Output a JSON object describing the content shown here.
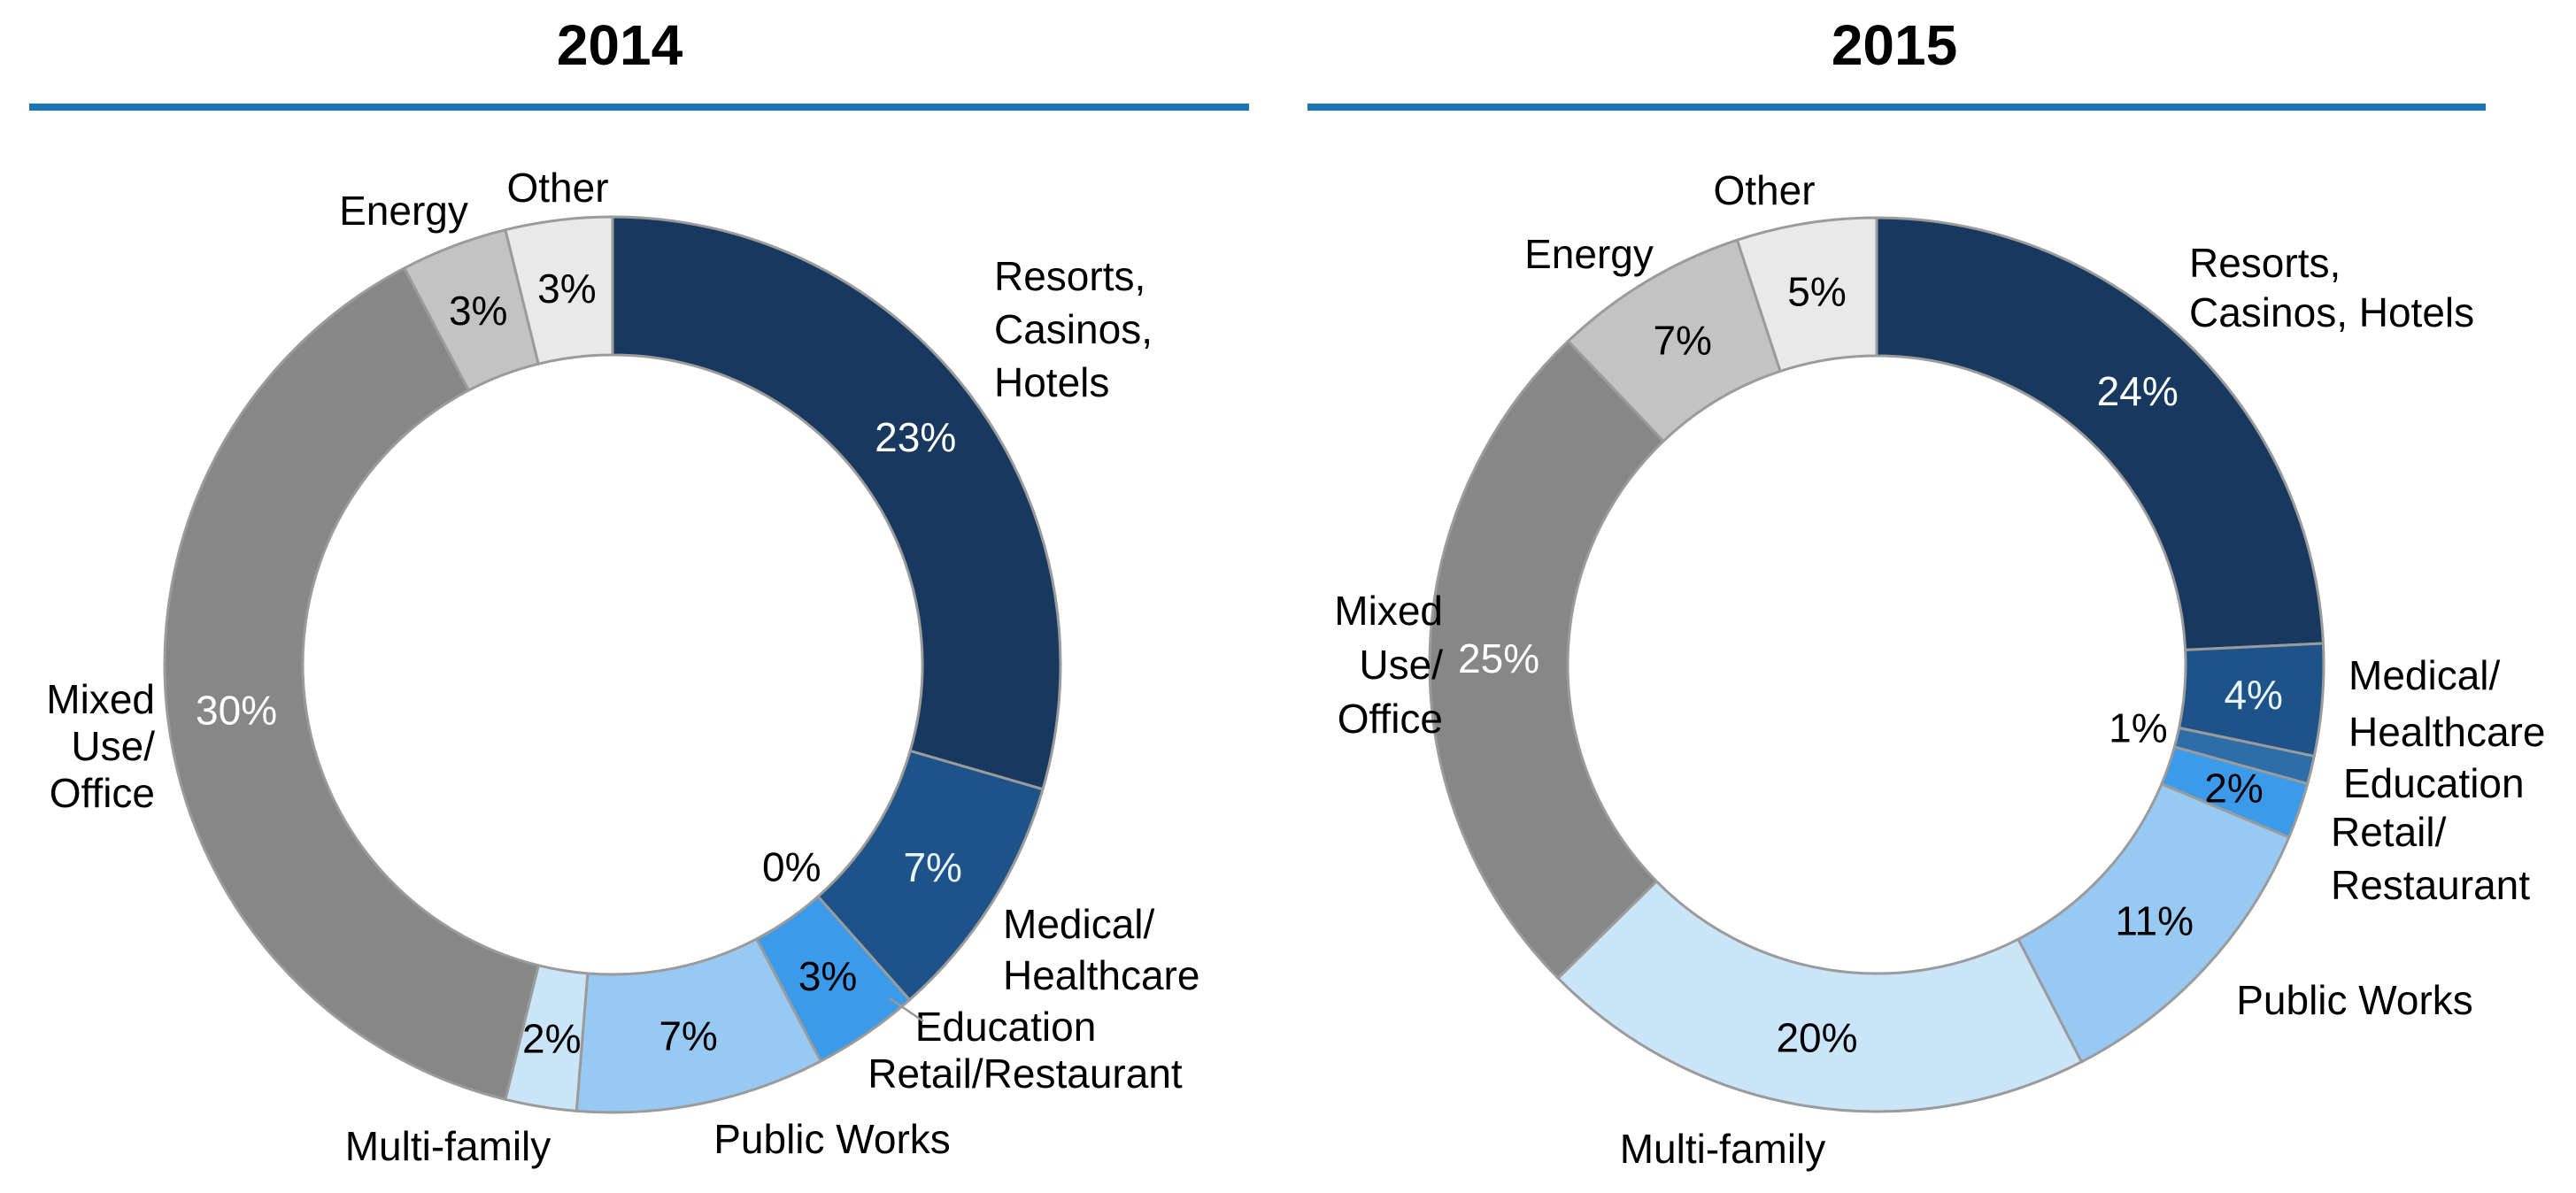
{
  "theme": {
    "background": "#FFFFFF",
    "rule_color": "#1B76B6",
    "slice_border_color": "#9B9B9B",
    "label_color": "#000000"
  },
  "chart_data": [
    {
      "type": "donut",
      "title": "2014",
      "unit": "percent",
      "donut_hole_ratio": 0.69,
      "legend_position": "none",
      "categories": [
        "Resorts, Casinos, Hotels",
        "Medical/Healthcare",
        "Education",
        "Retail/Restaurant",
        "Public Works",
        "Multi-family",
        "Mixed Use/Office",
        "Energy",
        "Other"
      ],
      "values": [
        23,
        7,
        0,
        3,
        7,
        2,
        30,
        3,
        3
      ],
      "pct_labels": [
        "23%",
        "7%",
        "0%",
        "3%",
        "7%",
        "2%",
        "30%",
        "3%",
        "3%"
      ],
      "colors": [
        "#17395F",
        "#1D5389",
        "#2D6DA8",
        "#3B9BEA",
        "#97C9F3",
        "#CAE4F8",
        "#878787",
        "#C3C3C3",
        "#E9E9E9"
      ],
      "pct_label_colors": [
        "#FFFFFF",
        "#EAF4FC",
        "#000000",
        "#000000",
        "#000000",
        "#000000",
        "#FFFFFF",
        "#000000",
        "#000000"
      ],
      "category_label_lines": [
        [
          "Resorts,",
          "Casinos,",
          "Hotels"
        ],
        [
          "Medical/",
          "Healthcare"
        ],
        [
          "Education"
        ],
        [
          "Retail/Restaurant"
        ],
        [
          "Public Works"
        ],
        [
          "Multi-family"
        ],
        [
          "Mixed",
          "Use/",
          "Office"
        ],
        [
          "Energy"
        ],
        [
          "Other"
        ]
      ]
    },
    {
      "type": "donut",
      "title": "2015",
      "unit": "percent",
      "donut_hole_ratio": 0.69,
      "legend_position": "none",
      "categories": [
        "Resorts, Casinos, Hotels",
        "Medical/Healthcare",
        "Education",
        "Retail/Restaurant",
        "Public Works",
        "Multi-family",
        "Mixed Use/Office",
        "Energy",
        "Other"
      ],
      "values": [
        24,
        4,
        1,
        2,
        11,
        20,
        25,
        7,
        5
      ],
      "pct_labels": [
        "24%",
        "4%",
        "1%",
        "2%",
        "11%",
        "20%",
        "25%",
        "7%",
        "5%"
      ],
      "colors": [
        "#17395F",
        "#1D5389",
        "#2D6DA8",
        "#3B9BEA",
        "#97C9F3",
        "#CAE4F8",
        "#878787",
        "#C3C3C3",
        "#E9E9E9"
      ],
      "pct_label_colors": [
        "#FFFFFF",
        "#EAF4FC",
        "#000000",
        "#000000",
        "#000000",
        "#000000",
        "#FFFFFF",
        "#000000",
        "#000000"
      ],
      "category_label_lines": [
        [
          "Resorts,",
          "Casinos, Hotels"
        ],
        [
          "Medical/",
          "Healthcare"
        ],
        [
          "Education"
        ],
        [
          "Retail/",
          "Restaurant"
        ],
        [
          "Public Works"
        ],
        [
          "Multi-family"
        ],
        [
          "Mixed",
          "Use/",
          "Office"
        ],
        [
          "Energy"
        ],
        [
          "Other"
        ]
      ]
    }
  ]
}
